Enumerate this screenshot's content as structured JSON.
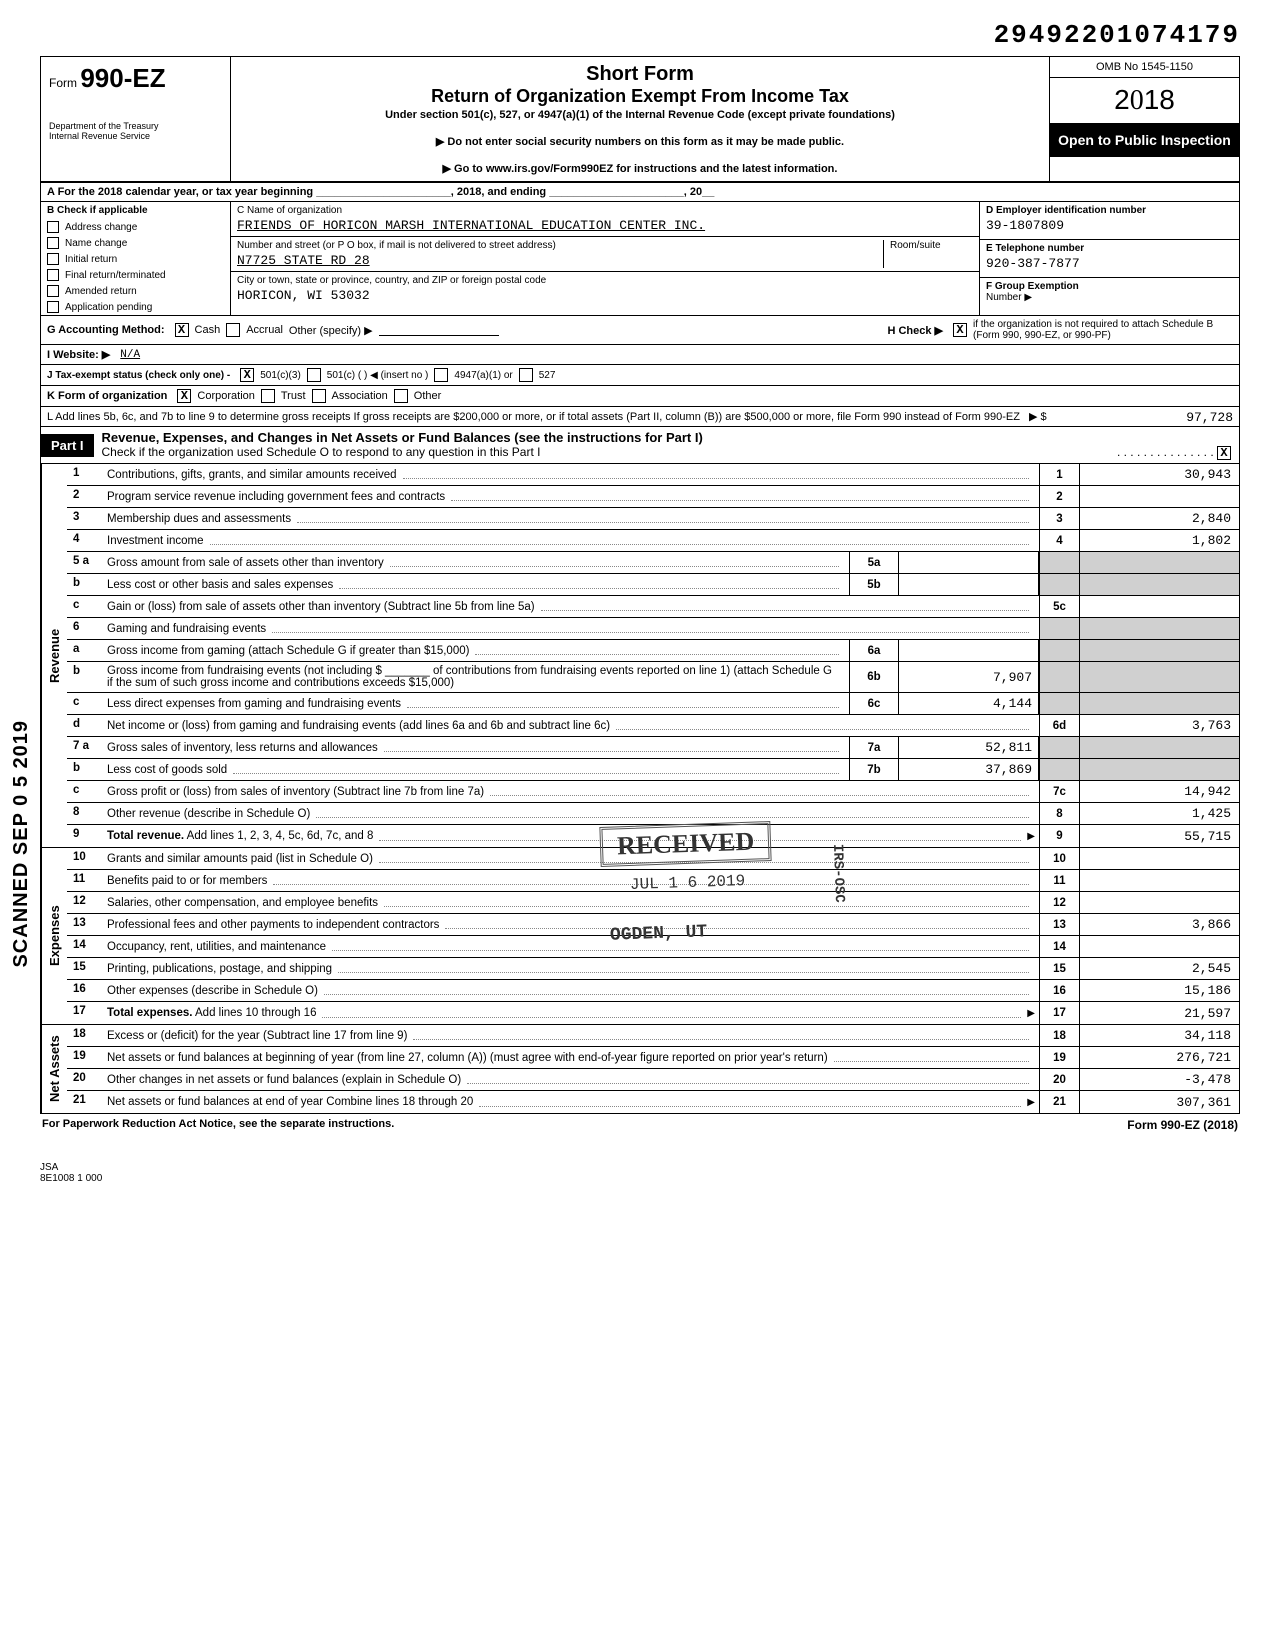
{
  "top_id": "29492201074179",
  "omb": "OMB No 1545-1150",
  "year": "2018",
  "open_to_public": "Open to Public Inspection",
  "form": {
    "prefix": "Form",
    "number": "990-EZ",
    "title1": "Short Form",
    "title2": "Return of Organization Exempt From Income Tax",
    "subtitle": "Under section 501(c), 527, or 4947(a)(1) of the Internal Revenue Code (except private foundations)",
    "note1": "▶ Do not enter social security numbers on this form as it may be made public.",
    "note2": "▶ Go to www.irs.gov/Form990EZ for instructions and the latest information.",
    "dept1": "Department of the Treasury",
    "dept2": "Internal Revenue Service"
  },
  "row_a": "A  For the 2018 calendar year, or tax year beginning ______________________, 2018, and ending ______________________, 20__",
  "section_b": {
    "header": "B  Check if applicable",
    "items": [
      "Address change",
      "Name change",
      "Initial return",
      "Final return/terminated",
      "Amended return",
      "Application pending"
    ]
  },
  "section_c": {
    "label": "C  Name of organization",
    "name": "FRIENDS OF HORICON MARSH INTERNATIONAL EDUCATION CENTER INC.",
    "addr_label": "Number and street (or P O  box, if mail is not delivered to street address)",
    "room_label": "Room/suite",
    "addr": "N7725 STATE RD 28",
    "city_label": "City or town, state or province, country, and ZIP or foreign postal code",
    "city": "HORICON, WI   53032"
  },
  "section_d": {
    "label": "D  Employer identification number",
    "value": "39-1807809"
  },
  "section_e": {
    "label": "E  Telephone number",
    "value": "920-387-7877"
  },
  "section_f": {
    "label": "F  Group Exemption",
    "label2": "Number ▶",
    "value": ""
  },
  "row_g": {
    "label": "G  Accounting Method:",
    "cash": "Cash",
    "cash_x": "X",
    "accrual": "Accrual",
    "other": "Other (specify) ▶"
  },
  "row_h": {
    "label": "H  Check ▶",
    "x": "X",
    "text": "if the organization is not required to attach Schedule B (Form 990, 990-EZ, or 990-PF)"
  },
  "row_i": {
    "label": "I  Website: ▶",
    "value": "N/A"
  },
  "row_j": {
    "label": "J  Tax-exempt status (check only one) -",
    "c3": "501(c)(3)",
    "c3_x": "X",
    "c": "501(c) (      ) ◀ (insert no )",
    "a1": "4947(a)(1) or",
    "s527": "527"
  },
  "row_k": {
    "label": "K  Form of organization",
    "corp": "Corporation",
    "corp_x": "X",
    "trust": "Trust",
    "assoc": "Association",
    "other": "Other"
  },
  "row_l": {
    "text": "L  Add lines 5b, 6c, and 7b to line 9 to determine gross receipts  If gross receipts are $200,000 or more, or if total assets (Part II, column (B)) are $500,000 or more, file Form 990 instead of Form 990-EZ",
    "arrow": "▶  $",
    "amount": "97,728"
  },
  "part1": {
    "tag": "Part I",
    "title": "Revenue, Expenses, and Changes in Net Assets or Fund Balances (see the instructions for Part I)",
    "sub": "Check if the organization used Schedule O to respond to any question in this Part I",
    "chk_x": "X"
  },
  "sections": {
    "revenue": "Revenue",
    "expenses": "Expenses",
    "netassets": "Net Assets"
  },
  "lines": {
    "l1": {
      "n": "1",
      "d": "Contributions, gifts, grants, and similar amounts received",
      "box": "1",
      "amt": "30,943"
    },
    "l2": {
      "n": "2",
      "d": "Program service revenue including government fees and contracts",
      "box": "2",
      "amt": ""
    },
    "l3": {
      "n": "3",
      "d": "Membership dues and assessments",
      "box": "3",
      "amt": "2,840"
    },
    "l4": {
      "n": "4",
      "d": "Investment income",
      "box": "4",
      "amt": "1,802"
    },
    "l5a": {
      "n": "5 a",
      "d": "Gross amount from sale of assets other than inventory",
      "ib": "5a",
      "iv": ""
    },
    "l5b": {
      "n": "b",
      "d": "Less  cost or other basis and sales expenses",
      "ib": "5b",
      "iv": ""
    },
    "l5c": {
      "n": "c",
      "d": "Gain or (loss) from sale of assets other than inventory (Subtract line 5b from line 5a)",
      "box": "5c",
      "amt": ""
    },
    "l6": {
      "n": "6",
      "d": "Gaming and fundraising events"
    },
    "l6a": {
      "n": "a",
      "d": "Gross income from gaming (attach Schedule G if greater than $15,000)",
      "ib": "6a",
      "iv": ""
    },
    "l6b": {
      "n": "b",
      "d": "Gross income from fundraising events (not including $ _______ of contributions from fundraising events reported on line 1) (attach Schedule G if the sum of such gross income and contributions exceeds $15,000)",
      "ib": "6b",
      "iv": "7,907"
    },
    "l6c": {
      "n": "c",
      "d": "Less  direct expenses from gaming and fundraising events",
      "ib": "6c",
      "iv": "4,144"
    },
    "l6d": {
      "n": "d",
      "d": "Net income or (loss) from gaming and fundraising events (add lines 6a and 6b and subtract line 6c)",
      "box": "6d",
      "amt": "3,763"
    },
    "l7a": {
      "n": "7 a",
      "d": "Gross sales of inventory, less returns and allowances",
      "ib": "7a",
      "iv": "52,811"
    },
    "l7b": {
      "n": "b",
      "d": "Less  cost of goods sold",
      "ib": "7b",
      "iv": "37,869"
    },
    "l7c": {
      "n": "c",
      "d": "Gross profit or (loss) from sales of inventory (Subtract line 7b from line 7a)",
      "box": "7c",
      "amt": "14,942"
    },
    "l8": {
      "n": "8",
      "d": "Other revenue (describe in Schedule O)",
      "box": "8",
      "amt": "1,425"
    },
    "l9": {
      "n": "9",
      "d": "Total revenue. Add lines 1, 2, 3, 4, 5c, 6d, 7c, and 8",
      "box": "9",
      "amt": "55,715",
      "tot": true,
      "arr": true
    },
    "l10": {
      "n": "10",
      "d": "Grants and similar amounts paid (list in Schedule O)",
      "box": "10",
      "amt": ""
    },
    "l11": {
      "n": "11",
      "d": "Benefits paid to or for members",
      "box": "11",
      "amt": ""
    },
    "l12": {
      "n": "12",
      "d": "Salaries, other compensation, and employee benefits",
      "box": "12",
      "amt": ""
    },
    "l13": {
      "n": "13",
      "d": "Professional fees and other payments to independent contractors",
      "box": "13",
      "amt": "3,866"
    },
    "l14": {
      "n": "14",
      "d": "Occupancy, rent, utilities, and maintenance",
      "box": "14",
      "amt": ""
    },
    "l15": {
      "n": "15",
      "d": "Printing, publications, postage, and shipping",
      "box": "15",
      "amt": "2,545"
    },
    "l16": {
      "n": "16",
      "d": "Other expenses (describe in Schedule O)",
      "box": "16",
      "amt": "15,186"
    },
    "l17": {
      "n": "17",
      "d": "Total expenses. Add lines 10 through 16",
      "box": "17",
      "amt": "21,597",
      "tot": true,
      "arr": true
    },
    "l18": {
      "n": "18",
      "d": "Excess or (deficit) for the year (Subtract line 17 from line 9)",
      "box": "18",
      "amt": "34,118"
    },
    "l19": {
      "n": "19",
      "d": "Net assets or fund balances at beginning of year (from line 27, column (A)) (must agree with end-of-year figure reported on prior year's return)",
      "box": "19",
      "amt": "276,721"
    },
    "l20": {
      "n": "20",
      "d": "Other changes in net assets or fund balances (explain in Schedule O)",
      "box": "20",
      "amt": "-3,478"
    },
    "l21": {
      "n": "21",
      "d": "Net assets or fund balances at end of year  Combine lines 18 through 20",
      "box": "21",
      "amt": "307,361",
      "arr": true
    }
  },
  "stamps": {
    "received": "RECEIVED",
    "date": "JUL 1 6 2019",
    "ogden": "OGDEN, UT",
    "irs": "IRS-OSC",
    "scanned": "SCANNED SEP 0 5 2019"
  },
  "footer": {
    "left": "For Paperwork Reduction Act Notice, see the separate instructions.",
    "right": "Form 990-EZ (2018)"
  },
  "jsa": {
    "l1": "JSA",
    "l2": "8E1008 1 000"
  }
}
